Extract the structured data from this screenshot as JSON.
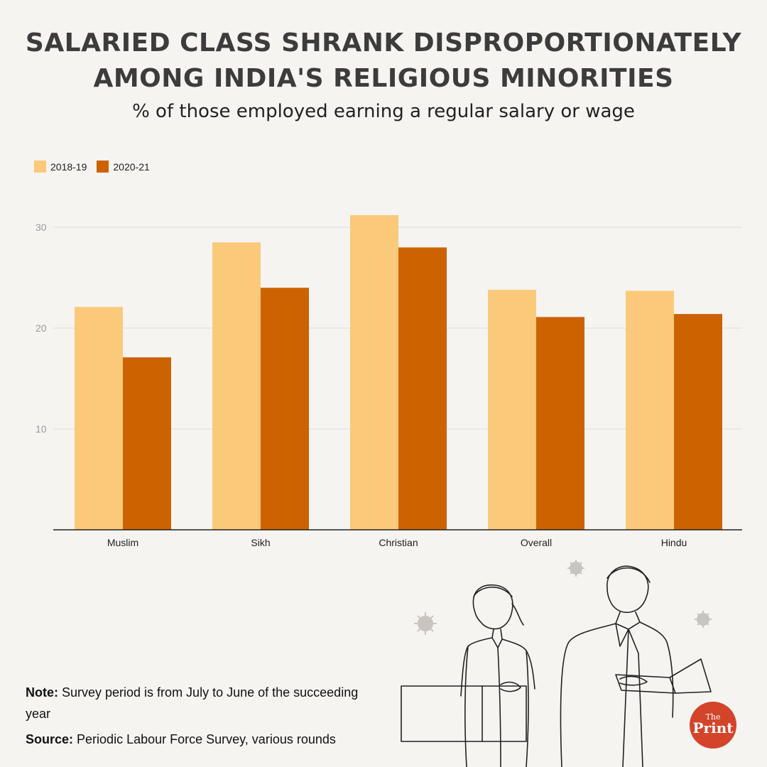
{
  "header": {
    "title_line1": "SALARIED CLASS SHRANK DISPROPORTIONATELY",
    "title_line2": "AMONG INDIA'S RELIGIOUS MINORITIES",
    "subtitle": "% of those employed earning a regular salary or wage"
  },
  "colors": {
    "series_2018": "#fbc97a",
    "series_2020": "#cc6300",
    "background": "#f6f4f1",
    "logo": "#d3442a"
  },
  "chart_data": {
    "type": "bar",
    "categories": [
      "Muslim",
      "Sikh",
      "Christian",
      "Overall",
      "Hindu"
    ],
    "series": [
      {
        "name": "2018-19",
        "values": [
          22.1,
          28.5,
          31.2,
          23.8,
          23.7
        ]
      },
      {
        "name": "2020-21",
        "values": [
          17.1,
          24.0,
          28.0,
          21.1,
          21.4
        ]
      }
    ],
    "yticks": [
      10,
      20,
      30
    ],
    "ylim": [
      0,
      32.5
    ],
    "grid": true,
    "legend": "top-left"
  },
  "footer": {
    "note_label": "Note:",
    "note_text": " Survey period is from July to June of the succeeding year",
    "source_label": "Source:",
    "source_text": " Periodic Labour Force Survey, various rounds"
  },
  "logo": {
    "line1": "The",
    "line2": "Print"
  },
  "icons": [
    "virus-icon",
    "people-illustration"
  ]
}
